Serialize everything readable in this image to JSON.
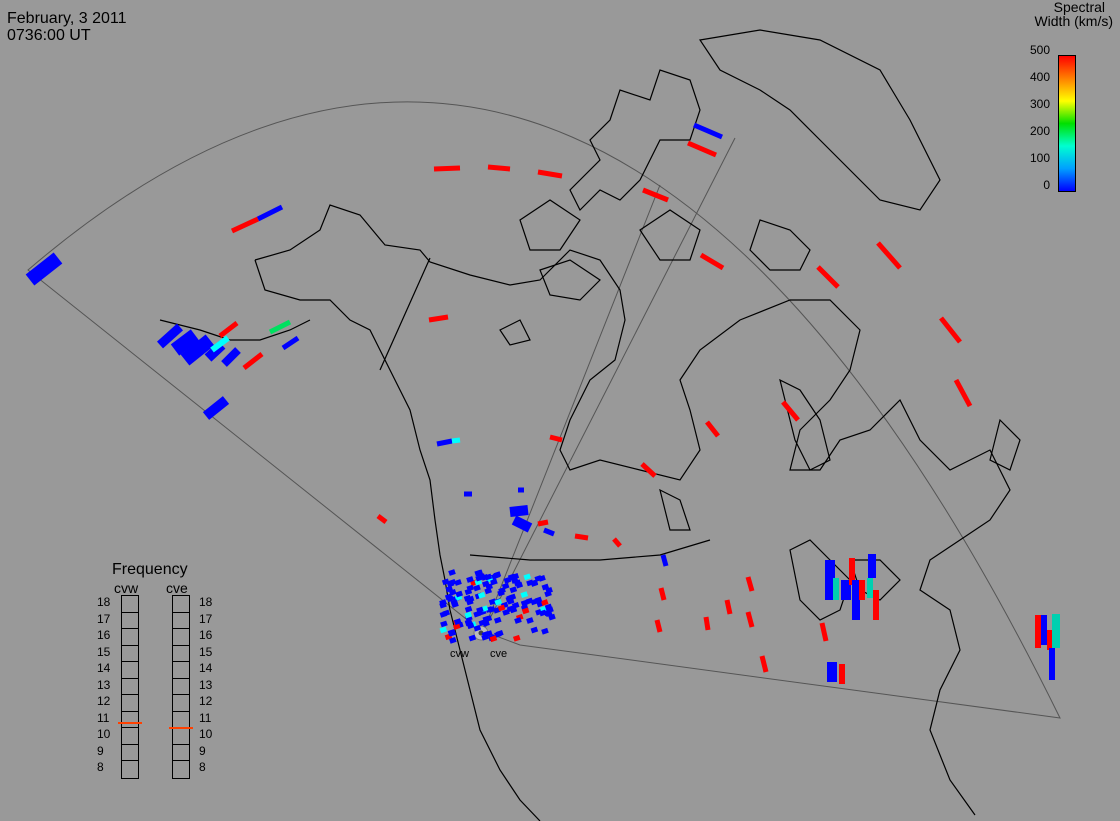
{
  "header": {
    "date": "February, 3 2011",
    "time": "0736:00 UT"
  },
  "colorbar": {
    "title_line1": "Spectral",
    "title_line2": "Width (km/s)",
    "ticks": [
      "500",
      "400",
      "300",
      "200",
      "100",
      "0"
    ],
    "min": 0,
    "max": 500,
    "colors": [
      "#0000ff",
      "#00a0ff",
      "#00ffd0",
      "#00e000",
      "#ffff00",
      "#ff8000",
      "#ff0000"
    ]
  },
  "frequency": {
    "title": "Frequency",
    "radars": [
      {
        "name": "cvw",
        "frequency_mhz": 10.8
      },
      {
        "name": "cve",
        "frequency_mhz": 10.5
      }
    ],
    "ticks": [
      "18",
      "17",
      "16",
      "15",
      "14",
      "13",
      "12",
      "11",
      "10",
      "9",
      "8"
    ],
    "indicator_color": "#ff4000"
  },
  "radar_sites": [
    "cvw",
    "cve"
  ],
  "colors": {
    "background": "#999999",
    "coastline": "#000000",
    "fov_line": "#555555"
  }
}
